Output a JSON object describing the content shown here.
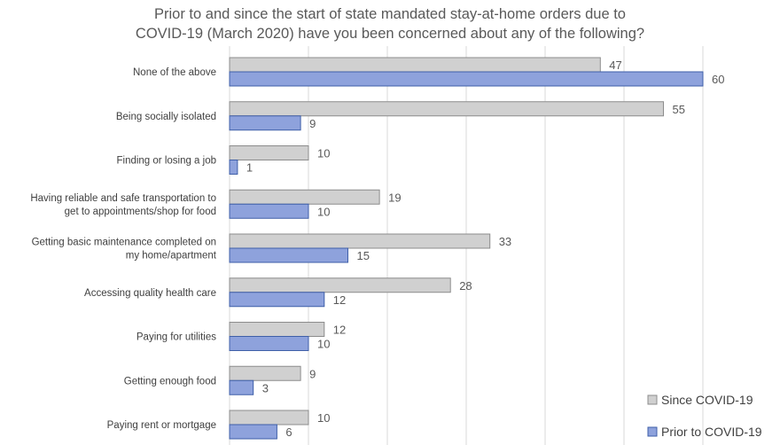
{
  "chart_data": {
    "type": "bar",
    "orientation": "horizontal",
    "title": "Prior to and since the start of state mandated stay-at-home orders due to COVID-19 (March 2020) have you been concerned about any of the following?",
    "title_lines": [
      "Prior to and since the start of state mandated stay-at-home orders due to",
      "COVID-19 (March 2020) have you been concerned about any of the following?"
    ],
    "categories": [
      [
        "None of the above"
      ],
      [
        "Being socially isolated"
      ],
      [
        "Finding or losing a job"
      ],
      [
        "Having reliable and safe transportation to",
        "get to appointments/shop for food"
      ],
      [
        "Getting basic maintenance completed on",
        "my home/apartment"
      ],
      [
        "Accessing quality health care"
      ],
      [
        "Paying for utilities"
      ],
      [
        "Getting enough food"
      ],
      [
        "Paying rent or mortgage"
      ]
    ],
    "series": [
      {
        "name": "Since COVID-19",
        "color": "#d0d0d0",
        "stroke": "#8c8c8c",
        "values": [
          47,
          55,
          10,
          19,
          33,
          28,
          12,
          9,
          10
        ]
      },
      {
        "name": "Prior to COVID-19",
        "color": "#8ea2dc",
        "stroke": "#3f5fa8",
        "values": [
          60,
          9,
          1,
          10,
          15,
          12,
          10,
          3,
          6
        ]
      }
    ],
    "xlim": [
      0,
      70
    ],
    "grid": true,
    "legend_position": "bottom-right",
    "xlabel": "",
    "ylabel": ""
  }
}
